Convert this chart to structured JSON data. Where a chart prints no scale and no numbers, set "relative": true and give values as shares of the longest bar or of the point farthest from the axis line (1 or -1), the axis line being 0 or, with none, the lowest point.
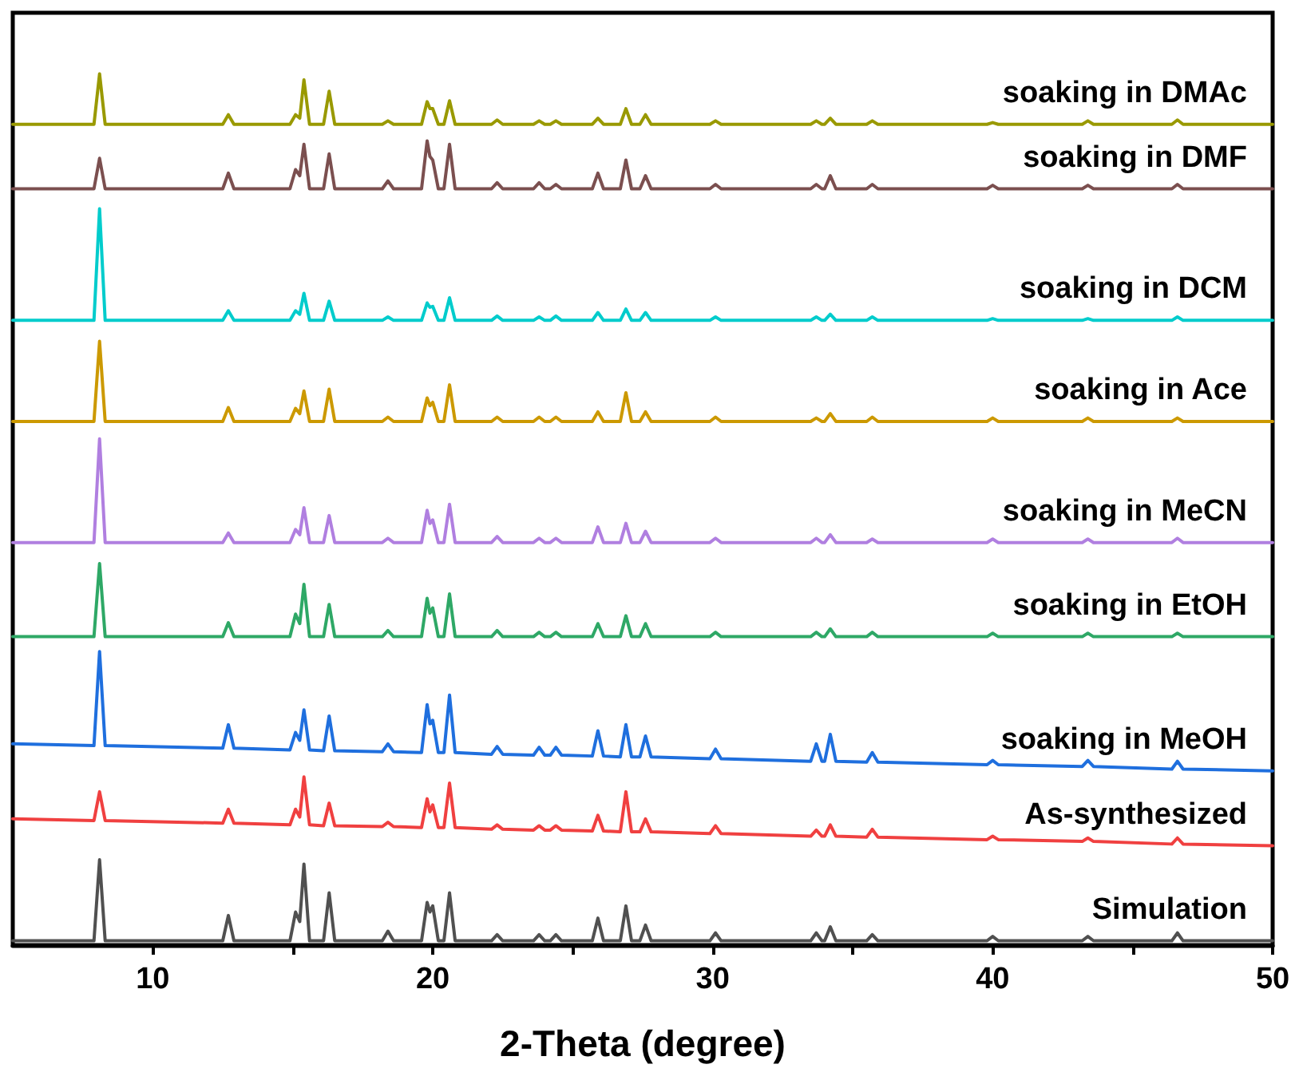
{
  "chart_data": {
    "type": "line",
    "xlabel": "2-Theta (degree)",
    "relative": true,
    "tick_labels": "x",
    "grid": false,
    "legend": false,
    "xlim": [
      5,
      50
    ],
    "xticks": [
      {
        "value": 10,
        "label": "10"
      },
      {
        "value": 15,
        "label": null
      },
      {
        "value": 20,
        "label": "20"
      },
      {
        "value": 25,
        "label": null
      },
      {
        "value": 30,
        "label": "30"
      },
      {
        "value": 35,
        "label": null
      },
      {
        "value": 40,
        "label": "40"
      },
      {
        "value": 45,
        "label": null
      },
      {
        "value": 50,
        "label": "50"
      }
    ],
    "x": [
      5,
      7.9,
      8.1,
      8.3,
      12.5,
      12.7,
      12.9,
      14.9,
      15.1,
      15.25,
      15.4,
      15.6,
      16.1,
      16.3,
      16.5,
      18.2,
      18.4,
      18.6,
      19.6,
      19.8,
      19.9,
      20.0,
      20.2,
      20.4,
      20.6,
      20.8,
      22.1,
      22.3,
      22.5,
      23.6,
      23.8,
      24.0,
      24.2,
      24.4,
      24.6,
      25.7,
      25.9,
      26.1,
      26.7,
      26.9,
      27.1,
      27.4,
      27.6,
      27.8,
      29.9,
      30.1,
      30.3,
      33.5,
      33.7,
      33.9,
      34.0,
      34.2,
      34.4,
      35.5,
      35.7,
      35.9,
      39.8,
      40.0,
      40.2,
      43.2,
      43.4,
      43.6,
      46.4,
      46.6,
      46.8,
      50
    ],
    "series": [
      {
        "name": "soaking in DMAc",
        "color": "#999900",
        "values": [
          0.942,
          0.942,
          1.0,
          0.942,
          0.942,
          0.953,
          0.942,
          0.942,
          0.953,
          0.949,
          0.993,
          0.942,
          0.942,
          0.98,
          0.942,
          0.942,
          0.946,
          0.942,
          0.942,
          0.968,
          0.96,
          0.96,
          0.942,
          0.942,
          0.969,
          0.942,
          0.942,
          0.947,
          0.942,
          0.942,
          0.946,
          0.942,
          0.942,
          0.946,
          0.942,
          0.942,
          0.949,
          0.942,
          0.942,
          0.96,
          0.942,
          0.942,
          0.953,
          0.942,
          0.942,
          0.946,
          0.942,
          0.942,
          0.946,
          0.942,
          0.942,
          0.949,
          0.942,
          0.942,
          0.946,
          0.942,
          0.942,
          0.944,
          0.942,
          0.942,
          0.946,
          0.942,
          0.942,
          0.947,
          0.942,
          0.942
        ]
      },
      {
        "name": "soaking in DMF",
        "color": "#7b4f4f",
        "values": [
          0.868,
          0.868,
          0.903,
          0.868,
          0.868,
          0.886,
          0.868,
          0.868,
          0.89,
          0.883,
          0.919,
          0.868,
          0.868,
          0.908,
          0.868,
          0.868,
          0.877,
          0.868,
          0.868,
          0.923,
          0.905,
          0.901,
          0.868,
          0.868,
          0.919,
          0.868,
          0.868,
          0.875,
          0.868,
          0.868,
          0.875,
          0.868,
          0.868,
          0.873,
          0.868,
          0.868,
          0.886,
          0.868,
          0.868,
          0.901,
          0.868,
          0.868,
          0.883,
          0.868,
          0.868,
          0.873,
          0.868,
          0.868,
          0.873,
          0.868,
          0.868,
          0.883,
          0.868,
          0.868,
          0.873,
          0.868,
          0.868,
          0.872,
          0.868,
          0.868,
          0.872,
          0.868,
          0.868,
          0.873,
          0.868,
          0.868
        ]
      },
      {
        "name": "soaking in DCM",
        "color": "#00cccc",
        "values": [
          0.717,
          0.717,
          0.845,
          0.717,
          0.717,
          0.728,
          0.717,
          0.717,
          0.728,
          0.724,
          0.748,
          0.717,
          0.717,
          0.739,
          0.717,
          0.717,
          0.721,
          0.717,
          0.717,
          0.737,
          0.732,
          0.733,
          0.717,
          0.717,
          0.743,
          0.717,
          0.717,
          0.722,
          0.717,
          0.717,
          0.721,
          0.717,
          0.717,
          0.722,
          0.717,
          0.717,
          0.726,
          0.717,
          0.717,
          0.73,
          0.717,
          0.717,
          0.726,
          0.717,
          0.717,
          0.721,
          0.717,
          0.717,
          0.721,
          0.717,
          0.717,
          0.724,
          0.717,
          0.717,
          0.721,
          0.717,
          0.717,
          0.719,
          0.717,
          0.717,
          0.719,
          0.717,
          0.717,
          0.721,
          0.717,
          0.717
        ]
      },
      {
        "name": "soaking in Ace",
        "color": "#cc9900",
        "values": [
          0.601,
          0.601,
          0.693,
          0.601,
          0.601,
          0.617,
          0.601,
          0.601,
          0.616,
          0.61,
          0.636,
          0.601,
          0.601,
          0.638,
          0.601,
          0.601,
          0.606,
          0.601,
          0.601,
          0.628,
          0.619,
          0.623,
          0.601,
          0.601,
          0.643,
          0.601,
          0.601,
          0.606,
          0.601,
          0.601,
          0.606,
          0.601,
          0.601,
          0.606,
          0.601,
          0.601,
          0.612,
          0.601,
          0.601,
          0.634,
          0.601,
          0.601,
          0.612,
          0.601,
          0.601,
          0.606,
          0.601,
          0.601,
          0.605,
          0.601,
          0.601,
          0.61,
          0.601,
          0.601,
          0.606,
          0.601,
          0.601,
          0.605,
          0.601,
          0.601,
          0.605,
          0.601,
          0.601,
          0.605,
          0.601,
          0.601
        ]
      },
      {
        "name": "soaking in MeCN",
        "color": "#b07fe0",
        "values": [
          0.462,
          0.462,
          0.581,
          0.462,
          0.462,
          0.473,
          0.462,
          0.462,
          0.477,
          0.471,
          0.502,
          0.462,
          0.462,
          0.493,
          0.462,
          0.462,
          0.467,
          0.462,
          0.462,
          0.499,
          0.484,
          0.488,
          0.462,
          0.462,
          0.506,
          0.462,
          0.462,
          0.469,
          0.462,
          0.462,
          0.467,
          0.462,
          0.462,
          0.467,
          0.462,
          0.462,
          0.48,
          0.462,
          0.462,
          0.484,
          0.462,
          0.462,
          0.475,
          0.462,
          0.462,
          0.467,
          0.462,
          0.462,
          0.467,
          0.462,
          0.462,
          0.471,
          0.462,
          0.462,
          0.466,
          0.462,
          0.462,
          0.466,
          0.462,
          0.462,
          0.466,
          0.462,
          0.462,
          0.467,
          0.462,
          0.462
        ]
      },
      {
        "name": "soaking in EtOH",
        "color": "#2ea866",
        "values": [
          0.354,
          0.354,
          0.438,
          0.354,
          0.354,
          0.37,
          0.354,
          0.354,
          0.38,
          0.369,
          0.414,
          0.354,
          0.354,
          0.391,
          0.354,
          0.354,
          0.361,
          0.354,
          0.354,
          0.398,
          0.381,
          0.387,
          0.354,
          0.354,
          0.403,
          0.354,
          0.354,
          0.361,
          0.354,
          0.354,
          0.359,
          0.354,
          0.354,
          0.359,
          0.354,
          0.354,
          0.369,
          0.354,
          0.354,
          0.378,
          0.354,
          0.354,
          0.369,
          0.354,
          0.354,
          0.359,
          0.354,
          0.354,
          0.359,
          0.354,
          0.354,
          0.363,
          0.354,
          0.354,
          0.359,
          0.354,
          0.354,
          0.358,
          0.354,
          0.354,
          0.358,
          0.354,
          0.354,
          0.358,
          0.354,
          0.354
        ]
      },
      {
        "name": "soaking in MeOH",
        "color": "#1f6fde",
        "values": [
          0.231,
          0.229,
          0.337,
          0.229,
          0.226,
          0.253,
          0.226,
          0.224,
          0.244,
          0.235,
          0.27,
          0.224,
          0.223,
          0.263,
          0.223,
          0.222,
          0.231,
          0.222,
          0.221,
          0.276,
          0.254,
          0.258,
          0.221,
          0.221,
          0.287,
          0.221,
          0.219,
          0.228,
          0.219,
          0.218,
          0.227,
          0.218,
          0.218,
          0.227,
          0.218,
          0.217,
          0.246,
          0.217,
          0.216,
          0.253,
          0.216,
          0.216,
          0.24,
          0.216,
          0.214,
          0.225,
          0.214,
          0.211,
          0.231,
          0.211,
          0.211,
          0.242,
          0.211,
          0.21,
          0.221,
          0.21,
          0.207,
          0.212,
          0.207,
          0.205,
          0.212,
          0.205,
          0.202,
          0.211,
          0.202,
          0.2
        ]
      },
      {
        "name": "As-synthesized",
        "color": "#f04040",
        "values": [
          0.145,
          0.143,
          0.176,
          0.143,
          0.14,
          0.156,
          0.14,
          0.138,
          0.156,
          0.147,
          0.193,
          0.138,
          0.137,
          0.163,
          0.137,
          0.136,
          0.141,
          0.136,
          0.135,
          0.168,
          0.153,
          0.161,
          0.135,
          0.135,
          0.186,
          0.135,
          0.133,
          0.138,
          0.133,
          0.132,
          0.137,
          0.132,
          0.132,
          0.137,
          0.132,
          0.131,
          0.149,
          0.131,
          0.13,
          0.176,
          0.13,
          0.13,
          0.145,
          0.13,
          0.128,
          0.137,
          0.128,
          0.125,
          0.132,
          0.125,
          0.125,
          0.138,
          0.125,
          0.124,
          0.133,
          0.124,
          0.121,
          0.125,
          0.121,
          0.119,
          0.123,
          0.119,
          0.116,
          0.123,
          0.116,
          0.114
        ]
      },
      {
        "name": "Simulation",
        "color": "#505050",
        "values": [
          0.005,
          0.005,
          0.098,
          0.005,
          0.005,
          0.034,
          0.005,
          0.005,
          0.038,
          0.027,
          0.093,
          0.005,
          0.005,
          0.06,
          0.005,
          0.005,
          0.016,
          0.005,
          0.005,
          0.049,
          0.038,
          0.045,
          0.005,
          0.005,
          0.06,
          0.005,
          0.005,
          0.012,
          0.005,
          0.005,
          0.012,
          0.005,
          0.005,
          0.012,
          0.005,
          0.005,
          0.031,
          0.005,
          0.005,
          0.045,
          0.005,
          0.005,
          0.023,
          0.005,
          0.005,
          0.014,
          0.005,
          0.005,
          0.014,
          0.005,
          0.005,
          0.021,
          0.005,
          0.005,
          0.012,
          0.005,
          0.005,
          0.01,
          0.005,
          0.005,
          0.01,
          0.005,
          0.005,
          0.014,
          0.005,
          0.005
        ]
      }
    ]
  }
}
